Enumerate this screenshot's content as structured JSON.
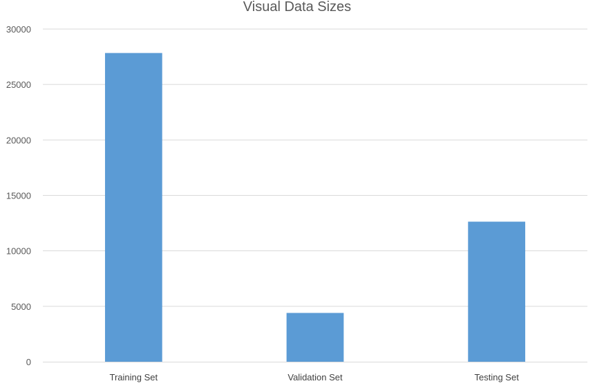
{
  "chart_data": {
    "type": "bar",
    "title": "Visual Data Sizes",
    "categories": [
      "Training Set",
      "Validation Set",
      "Testing Set"
    ],
    "values": [
      27840,
      4400,
      12630
    ],
    "xlabel": "",
    "ylabel": "",
    "ylim": [
      0,
      30000
    ],
    "yticks": [
      0,
      5000,
      10000,
      15000,
      20000,
      25000,
      30000
    ],
    "grid": true,
    "legend": "none",
    "bar_color": "#5b9bd5"
  }
}
